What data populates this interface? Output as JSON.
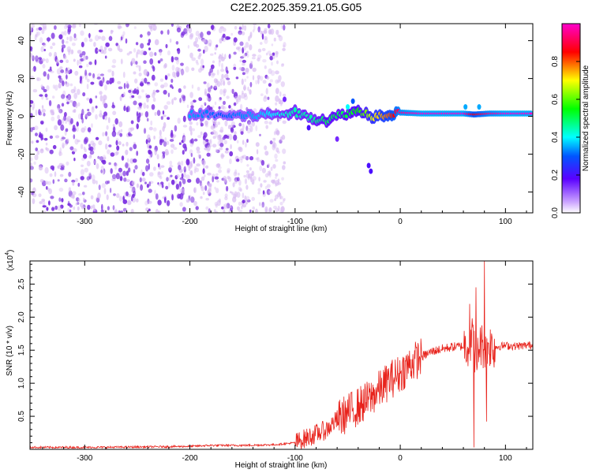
{
  "figure_title": "C2E2.2025.359.21.05.G05",
  "colors": {
    "spectrum_blob": "#7a2ee0",
    "spectrum_faint": "#d6b8f2",
    "snr_line": "#e8231c",
    "axis": "#000000"
  },
  "chart_data": [
    {
      "type": "heatmap",
      "title": "C2E2.2025.359.21.05.G05",
      "xlabel": "Height of straight line (km)",
      "ylabel": "Frequency (Hz)",
      "xlim": [
        -352,
        126
      ],
      "ylim": [
        -51,
        49
      ],
      "xticks": [
        -300,
        -200,
        -100,
        0,
        100
      ],
      "xtick_labels": [
        "-300",
        "-200",
        "-100",
        "0",
        "100"
      ],
      "yticks": [
        -40,
        -20,
        0,
        20,
        40
      ],
      "ytick_labels": [
        "-40",
        "-20",
        "0",
        "20",
        "40"
      ],
      "colorbar": {
        "label": "Normalized spectral amplitude",
        "range": [
          0,
          1
        ],
        "ticks": [
          0.0,
          0.2,
          0.4,
          0.6,
          0.8
        ],
        "tick_labels": [
          "0.0",
          "0.2",
          "0.4",
          "0.6",
          "0.8"
        ]
      },
      "noise_region": {
        "x": [
          -352,
          -110
        ],
        "y": [
          -51,
          49
        ],
        "amplitude": 0.05
      },
      "ridge": [
        {
          "x": -200,
          "freq": 1.5,
          "amp": 0.35
        },
        {
          "x": -170,
          "freq": 0.5,
          "amp": 0.3
        },
        {
          "x": -140,
          "freq": 0.5,
          "amp": 0.35
        },
        {
          "x": -120,
          "freq": 1.0,
          "amp": 0.4
        },
        {
          "x": -100,
          "freq": 2.0,
          "amp": 0.45
        },
        {
          "x": -85,
          "freq": -1.0,
          "amp": 0.45
        },
        {
          "x": -70,
          "freq": -2.0,
          "amp": 0.5
        },
        {
          "x": -55,
          "freq": 1.0,
          "amp": 0.5
        },
        {
          "x": -40,
          "freq": 3.0,
          "amp": 0.55
        },
        {
          "x": -25,
          "freq": 0.0,
          "amp": 0.7
        },
        {
          "x": -10,
          "freq": 1.5,
          "amp": 0.8
        },
        {
          "x": 0,
          "freq": 2.0,
          "amp": 0.95
        },
        {
          "x": 20,
          "freq": 1.5,
          "amp": 1.0
        },
        {
          "x": 40,
          "freq": 1.5,
          "amp": 1.0
        },
        {
          "x": 60,
          "freq": 1.5,
          "amp": 1.0
        },
        {
          "x": 70,
          "freq": 1.0,
          "amp": 0.85
        },
        {
          "x": 85,
          "freq": 1.5,
          "amp": 0.95
        },
        {
          "x": 100,
          "freq": 1.5,
          "amp": 1.0
        },
        {
          "x": 126,
          "freq": 1.5,
          "amp": 1.0
        }
      ],
      "stray_points": [
        {
          "x": -110,
          "freq": 9.0,
          "amp": 0.15
        },
        {
          "x": -50,
          "freq": 5.0,
          "amp": 0.4
        },
        {
          "x": -45,
          "freq": 8.0,
          "amp": 0.3
        },
        {
          "x": -30,
          "freq": -26.0,
          "amp": 0.2
        },
        {
          "x": -28,
          "freq": -29.0,
          "amp": 0.2
        },
        {
          "x": -87,
          "freq": -6.0,
          "amp": 0.2
        },
        {
          "x": -60,
          "freq": -12.0,
          "amp": 0.15
        },
        {
          "x": 62,
          "freq": 5.0,
          "amp": 0.35
        },
        {
          "x": 75,
          "freq": 5.0,
          "amp": 0.35
        }
      ]
    },
    {
      "type": "line",
      "xlabel": "Height of straight line (km)",
      "ylabel": "SNR (10 * v/v)",
      "y_scale_label": "(x10",
      "y_scale_exponent": "4",
      "y_scale_suffix": ")",
      "xlim": [
        -352,
        126
      ],
      "ylim": [
        0,
        28500
      ],
      "xticks": [
        -300,
        -200,
        -100,
        0,
        100
      ],
      "xtick_labels": [
        "-300",
        "-200",
        "-100",
        "0",
        "100"
      ],
      "yticks": [
        5000,
        10000,
        15000,
        20000,
        25000
      ],
      "ytick_labels": [
        "0.5",
        "1.0",
        "1.5",
        "2.0",
        "2.5"
      ],
      "series": [
        {
          "name": "SNR",
          "x": [
            -352,
            -300,
            -250,
            -200,
            -180,
            -150,
            -120,
            -100,
            -85,
            -70,
            -60,
            -50,
            -40,
            -30,
            -20,
            -10,
            0,
            10,
            20,
            30,
            40,
            50,
            60,
            65,
            70,
            72,
            75,
            80,
            85,
            90,
            100,
            110,
            126
          ],
          "y": [
            300,
            300,
            350,
            450,
            600,
            600,
            700,
            1000,
            2000,
            3000,
            4500,
            5500,
            6500,
            7500,
            9000,
            10500,
            11500,
            13000,
            14000,
            14800,
            15200,
            15500,
            15600,
            16000,
            17000,
            12000,
            16000,
            15500,
            15800,
            15500,
            15700,
            15600,
            15800
          ]
        }
      ],
      "noise_amplitude": [
        {
          "from": -352,
          "to": -100,
          "amp": 150
        },
        {
          "from": -100,
          "to": -60,
          "amp": 1500
        },
        {
          "from": -60,
          "to": 20,
          "amp": 3000
        },
        {
          "from": 20,
          "to": 60,
          "amp": 700
        },
        {
          "from": 60,
          "to": 90,
          "amp": 3500
        },
        {
          "from": 90,
          "to": 126,
          "amp": 600
        }
      ],
      "spikes": [
        {
          "x": 80,
          "y": 28500
        },
        {
          "x": 72,
          "y": 24500
        },
        {
          "x": 70,
          "y": 300
        },
        {
          "x": 82,
          "y": 4200
        },
        {
          "x": 66,
          "y": 22000
        }
      ]
    }
  ]
}
